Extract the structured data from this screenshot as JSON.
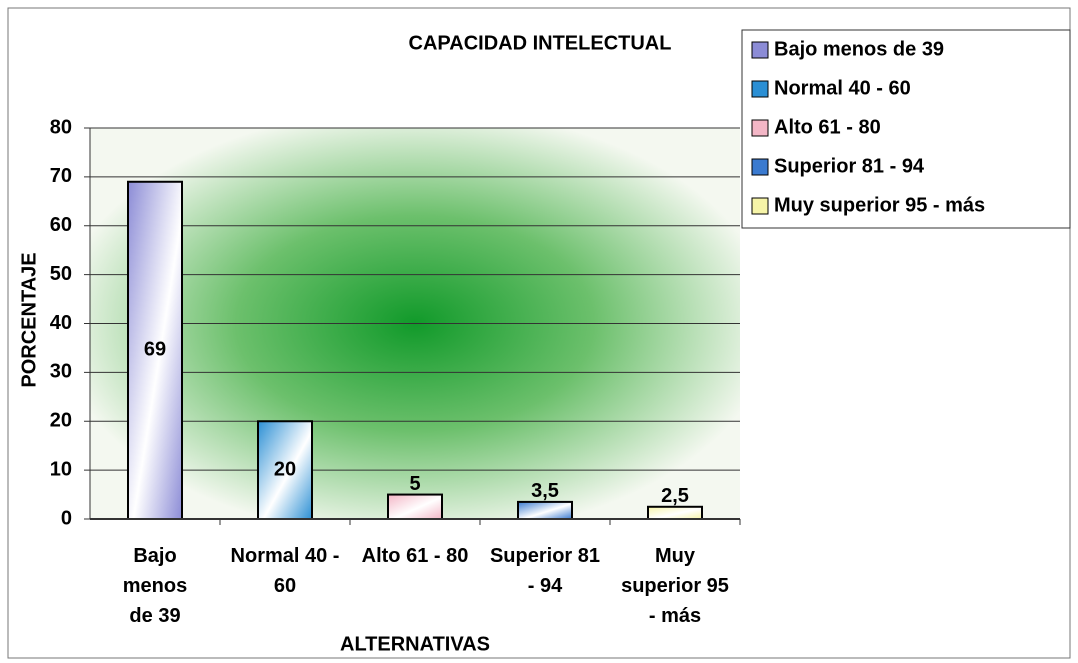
{
  "chart_data": {
    "type": "bar",
    "title": "CAPACIDAD INTELECTUAL",
    "x_label": "ALTERNATIVAS",
    "y_label": "PORCENTAJE",
    "categories": [
      "Bajo menos de 39",
      "Normal 40 - 60",
      "Alto 61 - 80",
      "Superior 81 - 94",
      "Muy superior 95 - más"
    ],
    "values": [
      69,
      20,
      5,
      3.5,
      2.5
    ],
    "value_labels": [
      "69",
      "20",
      "5",
      "3,5",
      "2,5"
    ],
    "colors": [
      "#8c8cd6",
      "#2b8fd4",
      "#f3b6c6",
      "#3a7ad0",
      "#f6f4a8"
    ],
    "ylim": [
      0,
      80
    ],
    "yticks": [
      0,
      10,
      20,
      30,
      40,
      50,
      60,
      70,
      80
    ],
    "grid": true,
    "legend": "right"
  }
}
